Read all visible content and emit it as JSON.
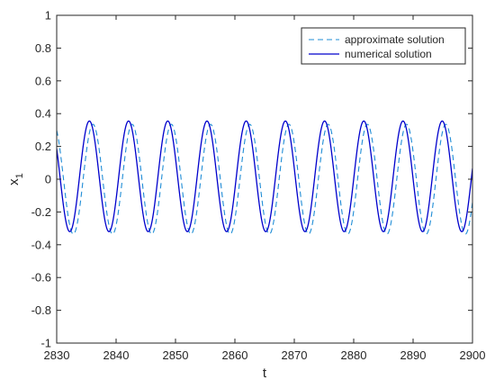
{
  "chart_data": {
    "type": "line",
    "xlabel": "t",
    "ylabel": "x",
    "ylabel_subscript": "1",
    "xlim": [
      2830,
      2900
    ],
    "ylim": [
      -1,
      1
    ],
    "xticks": [
      "2830",
      "2840",
      "2850",
      "2860",
      "2870",
      "2880",
      "2890",
      "2900"
    ],
    "yticks": [
      "-1",
      "-0.8",
      "-0.6",
      "-0.4",
      "-0.2",
      "0",
      "0.2",
      "0.4",
      "0.6",
      "0.8",
      "1"
    ],
    "grid": false,
    "legend_position": "top-right",
    "series": [
      {
        "name": "approximate solution",
        "style": "dashed",
        "color": "#1f8dd6",
        "amplitude_max": 0.335,
        "amplitude_min": -0.335,
        "period": 6.6,
        "peak_times": [
          2829.5,
          2836.1,
          2842.7,
          2849.3,
          2855.9,
          2862.5,
          2869.1,
          2875.7,
          2882.3,
          2888.9,
          2895.5
        ]
      },
      {
        "name": "numerical solution",
        "style": "solid",
        "color": "#0000cc",
        "amplitude_max": 0.355,
        "amplitude_min": -0.32,
        "period": 6.6,
        "peak_times": [
          2828.9,
          2835.5,
          2842.1,
          2848.7,
          2855.3,
          2861.9,
          2868.5,
          2875.1,
          2881.7,
          2888.3,
          2894.9
        ]
      }
    ]
  }
}
